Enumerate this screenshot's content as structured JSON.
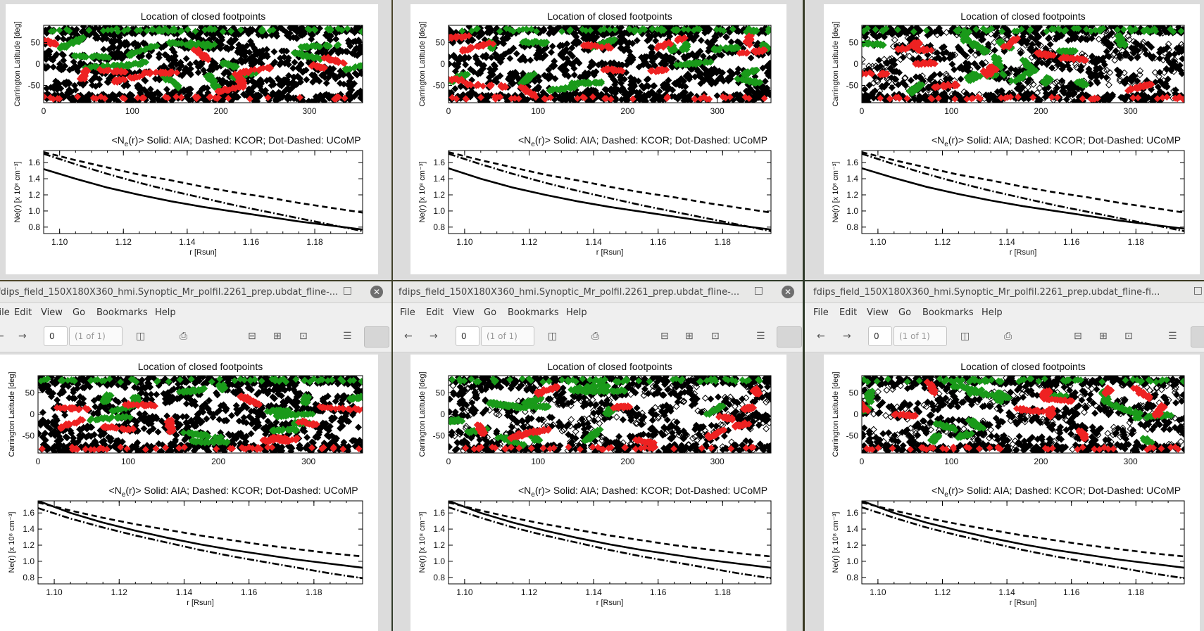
{
  "viewer": {
    "window_title": "fdips_field_150X180X360_hmi.Synoptic_Mr_polfil.2261_prep.ubdat_fline-...",
    "window_title_alt": "fdips_field_150X180X360_hmi.Synoptic_Mr_polfil.2261_prep.ubdat_fline-fi...",
    "menu": [
      "File",
      "Edit",
      "View",
      "Go",
      "Bookmarks",
      "Help"
    ],
    "page_value": "0",
    "page_count": "(1 of 1)",
    "icons": [
      "back-arrow-icon",
      "forward-arrow-icon",
      "sidebar-icon",
      "print-icon",
      "zoom-out-icon",
      "zoom-in-icon",
      "zoom-fit-icon",
      "menu-icon",
      "continuous-view-icon",
      "close-icon",
      "minimize-icon"
    ]
  },
  "figure_text": {
    "map_title": "Location of closed footpoints",
    "map_ylabel": "Carrington Latitude [deg]",
    "profile_title_prefix": "<N",
    "profile_title_sub": "e",
    "profile_title_suffix": "(r)>",
    "profile_legend": "Solid: AIA; Dashed: KCOR; Dot-Dashed: UCoMP",
    "profile_ylabel": "Ne(r) [x 10⁸ cm⁻³]",
    "profile_xlabel": "r [Rsun]"
  },
  "colors": {
    "closed_black": "#000000",
    "footpoint_red": "#ee2222",
    "footpoint_green": "#1a9a1a"
  },
  "chart_data": [
    {
      "panel": "top-left",
      "map": {
        "type": "scatter",
        "title": "Location of closed footpoints",
        "ylabel": "Carrington Latitude [deg]",
        "xlim": [
          0,
          360
        ],
        "ylim": [
          -90,
          90
        ],
        "xticks": [
          0,
          100,
          200,
          300
        ],
        "yticks": [
          -50,
          0,
          50
        ]
      },
      "profile": {
        "type": "line",
        "title": "<Ne(r)>",
        "xlabel": "r [Rsun]",
        "ylabel": "Ne(r) [x 10^8 cm^-3]",
        "xlim": [
          1.095,
          1.195
        ],
        "ylim": [
          0.72,
          1.75
        ],
        "xticks": [
          1.1,
          1.12,
          1.14,
          1.16,
          1.18
        ],
        "yticks": [
          0.8,
          1.0,
          1.2,
          1.4,
          1.6
        ],
        "r": [
          1.095,
          1.105,
          1.115,
          1.125,
          1.135,
          1.145,
          1.155,
          1.165,
          1.175,
          1.185,
          1.195
        ],
        "series": [
          {
            "name": "Solid: AIA",
            "values": [
              1.52,
              1.4,
              1.29,
              1.2,
              1.12,
              1.05,
              0.99,
              0.93,
              0.87,
              0.82,
              0.77
            ]
          },
          {
            "name": "Dashed: KCOR",
            "values": [
              1.73,
              1.63,
              1.54,
              1.45,
              1.38,
              1.3,
              1.23,
              1.17,
              1.1,
              1.04,
              0.98
            ]
          },
          {
            "name": "Dot-Dashed: UCoMP",
            "values": [
              1.71,
              1.58,
              1.46,
              1.35,
              1.25,
              1.16,
              1.07,
              0.99,
              0.91,
              0.83,
              0.75
            ]
          }
        ]
      }
    },
    {
      "panel": "top-middle",
      "map": {
        "type": "scatter",
        "title": "Location of closed footpoints",
        "ylabel": "Carrington Latitude [deg]",
        "xlim": [
          0,
          360
        ],
        "ylim": [
          -90,
          90
        ],
        "xticks": [
          0,
          100,
          200,
          300
        ],
        "yticks": [
          -50,
          0,
          50
        ]
      },
      "profile": {
        "type": "line",
        "title": "<Ne(r)>",
        "xlabel": "r [Rsun]",
        "ylabel": "Ne(r) [x 10^8 cm^-3]",
        "xlim": [
          1.095,
          1.195
        ],
        "ylim": [
          0.72,
          1.75
        ],
        "xticks": [
          1.1,
          1.12,
          1.14,
          1.16,
          1.18
        ],
        "yticks": [
          0.8,
          1.0,
          1.2,
          1.4,
          1.6
        ],
        "r": [
          1.095,
          1.105,
          1.115,
          1.125,
          1.135,
          1.145,
          1.155,
          1.165,
          1.175,
          1.185,
          1.195
        ],
        "series": [
          {
            "name": "Solid: AIA",
            "values": [
              1.53,
              1.4,
              1.29,
              1.2,
              1.12,
              1.05,
              0.99,
              0.93,
              0.87,
              0.82,
              0.77
            ]
          },
          {
            "name": "Dashed: KCOR",
            "values": [
              1.73,
              1.63,
              1.54,
              1.45,
              1.38,
              1.3,
              1.23,
              1.17,
              1.1,
              1.04,
              0.98
            ]
          },
          {
            "name": "Dot-Dashed: UCoMP",
            "values": [
              1.71,
              1.58,
              1.46,
              1.35,
              1.25,
              1.16,
              1.07,
              0.99,
              0.91,
              0.83,
              0.75
            ]
          }
        ]
      }
    },
    {
      "panel": "top-right",
      "map": {
        "type": "scatter",
        "title": "Location of closed footpoints",
        "ylabel": "Carrington Latitude [deg]",
        "xlim": [
          0,
          360
        ],
        "ylim": [
          -90,
          90
        ],
        "xticks": [
          0,
          100,
          200,
          300
        ],
        "yticks": [
          -50,
          0,
          50
        ]
      },
      "profile": {
        "type": "line",
        "title": "<Ne(r)>",
        "xlabel": "r [Rsun]",
        "ylabel": "Ne(r) [x 10^8 cm^-3]",
        "xlim": [
          1.095,
          1.195
        ],
        "ylim": [
          0.72,
          1.75
        ],
        "xticks": [
          1.1,
          1.12,
          1.14,
          1.16,
          1.18
        ],
        "yticks": [
          0.8,
          1.0,
          1.2,
          1.4,
          1.6
        ],
        "r": [
          1.095,
          1.105,
          1.115,
          1.125,
          1.135,
          1.145,
          1.155,
          1.165,
          1.175,
          1.185,
          1.195
        ],
        "series": [
          {
            "name": "Solid: AIA",
            "values": [
              1.53,
              1.41,
              1.3,
              1.21,
              1.13,
              1.06,
              1.0,
              0.94,
              0.88,
              0.83,
              0.78
            ]
          },
          {
            "name": "Dashed: KCOR",
            "values": [
              1.73,
              1.63,
              1.54,
              1.45,
              1.38,
              1.3,
              1.23,
              1.17,
              1.1,
              1.04,
              0.98
            ]
          },
          {
            "name": "Dot-Dashed: UCoMP",
            "values": [
              1.71,
              1.58,
              1.46,
              1.35,
              1.25,
              1.16,
              1.07,
              0.99,
              0.91,
              0.83,
              0.75
            ]
          }
        ]
      }
    },
    {
      "panel": "bottom-left",
      "map": {
        "type": "scatter",
        "title": "Location of closed footpoints",
        "ylabel": "Carrington Latitude [deg]",
        "xlim": [
          0,
          360
        ],
        "ylim": [
          -90,
          90
        ],
        "xticks": [
          0,
          100,
          200,
          300
        ],
        "yticks": [
          -50,
          0,
          50
        ]
      },
      "profile": {
        "type": "line",
        "title": "<Ne(r)>",
        "xlabel": "r [Rsun]",
        "ylabel": "Ne(r) [x 10^8 cm^-3]",
        "xlim": [
          1.095,
          1.195
        ],
        "ylim": [
          0.72,
          1.75
        ],
        "xticks": [
          1.1,
          1.12,
          1.14,
          1.16,
          1.18
        ],
        "yticks": [
          0.8,
          1.0,
          1.2,
          1.4,
          1.6
        ],
        "r": [
          1.095,
          1.105,
          1.115,
          1.125,
          1.135,
          1.145,
          1.155,
          1.165,
          1.175,
          1.185,
          1.195
        ],
        "series": [
          {
            "name": "Solid: AIA",
            "values": [
              1.75,
              1.6,
              1.48,
              1.38,
              1.29,
              1.21,
              1.14,
              1.08,
              1.02,
              0.97,
              0.92
            ]
          },
          {
            "name": "Dashed: KCOR",
            "values": [
              1.73,
              1.63,
              1.54,
              1.46,
              1.39,
              1.32,
              1.26,
              1.2,
              1.15,
              1.1,
              1.06
            ]
          },
          {
            "name": "Dot-Dashed: UCoMP",
            "values": [
              1.66,
              1.53,
              1.42,
              1.32,
              1.23,
              1.14,
              1.06,
              0.99,
              0.92,
              0.85,
              0.79
            ]
          }
        ]
      }
    },
    {
      "panel": "bottom-middle",
      "map": {
        "type": "scatter",
        "title": "Location of closed footpoints",
        "ylabel": "Carrington Latitude [deg]",
        "xlim": [
          0,
          360
        ],
        "ylim": [
          -90,
          90
        ],
        "xticks": [
          0,
          100,
          200,
          300
        ],
        "yticks": [
          -50,
          0,
          50
        ]
      },
      "profile": {
        "type": "line",
        "title": "<Ne(r)>",
        "xlabel": "r [Rsun]",
        "ylabel": "Ne(r) [x 10^8 cm^-3]",
        "xlim": [
          1.095,
          1.195
        ],
        "ylim": [
          0.72,
          1.75
        ],
        "xticks": [
          1.1,
          1.12,
          1.14,
          1.16,
          1.18
        ],
        "yticks": [
          0.8,
          1.0,
          1.2,
          1.4,
          1.6
        ],
        "r": [
          1.095,
          1.105,
          1.115,
          1.125,
          1.135,
          1.145,
          1.155,
          1.165,
          1.175,
          1.185,
          1.195
        ],
        "series": [
          {
            "name": "Solid: AIA",
            "values": [
              1.75,
              1.6,
              1.48,
              1.38,
              1.29,
              1.21,
              1.14,
              1.08,
              1.02,
              0.97,
              0.92
            ]
          },
          {
            "name": "Dashed: KCOR",
            "values": [
              1.73,
              1.63,
              1.54,
              1.46,
              1.39,
              1.32,
              1.26,
              1.2,
              1.15,
              1.1,
              1.06
            ]
          },
          {
            "name": "Dot-Dashed: UCoMP",
            "values": [
              1.67,
              1.54,
              1.42,
              1.32,
              1.23,
              1.14,
              1.06,
              0.99,
              0.92,
              0.85,
              0.79
            ]
          }
        ]
      }
    },
    {
      "panel": "bottom-right",
      "map": {
        "type": "scatter",
        "title": "Location of closed footpoints",
        "ylabel": "Carrington Latitude [deg]",
        "xlim": [
          0,
          360
        ],
        "ylim": [
          -90,
          90
        ],
        "xticks": [
          0,
          100,
          200,
          300
        ],
        "yticks": [
          -50,
          0,
          50
        ]
      },
      "profile": {
        "type": "line",
        "title": "<Ne(r)>",
        "xlabel": "r [Rsun]",
        "ylabel": "Ne(r) [x 10^8 cm^-3]",
        "xlim": [
          1.095,
          1.195
        ],
        "ylim": [
          0.72,
          1.75
        ],
        "xticks": [
          1.1,
          1.12,
          1.14,
          1.16,
          1.18
        ],
        "yticks": [
          0.8,
          1.0,
          1.2,
          1.4,
          1.6
        ],
        "r": [
          1.095,
          1.105,
          1.115,
          1.125,
          1.135,
          1.145,
          1.155,
          1.165,
          1.175,
          1.185,
          1.195
        ],
        "series": [
          {
            "name": "Solid: AIA",
            "values": [
              1.75,
              1.6,
              1.48,
              1.38,
              1.29,
              1.21,
              1.14,
              1.08,
              1.02,
              0.97,
              0.92
            ]
          },
          {
            "name": "Dashed: KCOR",
            "values": [
              1.73,
              1.63,
              1.54,
              1.46,
              1.39,
              1.32,
              1.26,
              1.2,
              1.15,
              1.1,
              1.06
            ]
          },
          {
            "name": "Dot-Dashed: UCoMP",
            "values": [
              1.67,
              1.54,
              1.42,
              1.32,
              1.23,
              1.14,
              1.06,
              0.99,
              0.92,
              0.85,
              0.79
            ]
          }
        ]
      }
    }
  ]
}
